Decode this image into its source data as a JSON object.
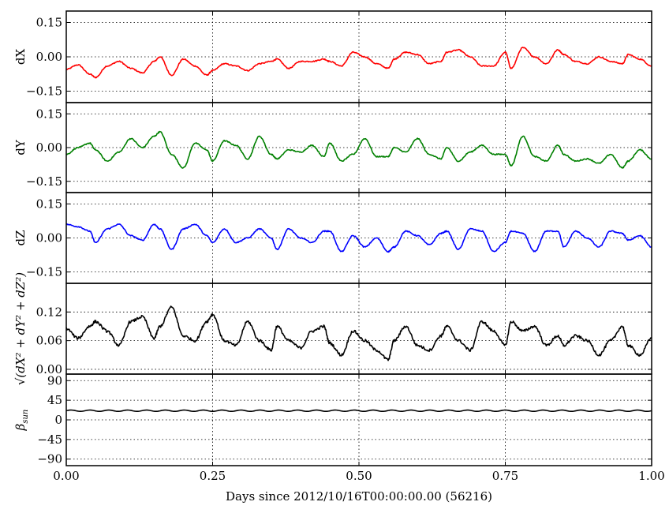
{
  "chart_data": {
    "type": "line",
    "layout": "stacked-subplots",
    "shared_x": {
      "label": "Days since 2012/10/16T00:00:00.00 (56216)",
      "range": [
        0,
        1
      ],
      "ticks": [
        0,
        0.25,
        0.5,
        0.75,
        1
      ],
      "tick_labels": [
        "0.00",
        "0.25",
        "0.50",
        "0.75",
        "1.00"
      ]
    },
    "grid": true,
    "panels": [
      {
        "ylabel": "dX",
        "ylim": [
          -0.2,
          0.2
        ],
        "yticks": [
          -0.15,
          0,
          0.15
        ],
        "ytick_labels": [
          "−0.15",
          "0.00",
          "0.15"
        ],
        "color": "#ff0000",
        "x": [
          0,
          0.02,
          0.04,
          0.05,
          0.07,
          0.09,
          0.11,
          0.13,
          0.15,
          0.16,
          0.18,
          0.2,
          0.22,
          0.24,
          0.25,
          0.27,
          0.29,
          0.31,
          0.33,
          0.35,
          0.36,
          0.38,
          0.4,
          0.42,
          0.44,
          0.45,
          0.47,
          0.49,
          0.51,
          0.53,
          0.55,
          0.56,
          0.58,
          0.6,
          0.62,
          0.64,
          0.65,
          0.67,
          0.69,
          0.71,
          0.73,
          0.75,
          0.76,
          0.78,
          0.8,
          0.82,
          0.84,
          0.85,
          0.87,
          0.89,
          0.91,
          0.93,
          0.95,
          0.96,
          0.98,
          1.0
        ],
        "values": [
          -0.055,
          -0.035,
          -0.075,
          -0.09,
          -0.04,
          -0.02,
          -0.05,
          -0.07,
          -0.02,
          0.0,
          -0.08,
          -0.01,
          -0.04,
          -0.08,
          -0.06,
          -0.03,
          -0.04,
          -0.06,
          -0.03,
          -0.02,
          -0.01,
          -0.05,
          -0.02,
          -0.02,
          -0.01,
          -0.02,
          -0.04,
          0.02,
          0.0,
          -0.03,
          -0.05,
          -0.01,
          0.02,
          0.01,
          -0.03,
          -0.02,
          0.02,
          0.03,
          0.0,
          -0.04,
          -0.04,
          0.02,
          -0.05,
          0.04,
          0.0,
          -0.03,
          0.03,
          0.01,
          -0.02,
          -0.03,
          0.0,
          -0.02,
          -0.03,
          0.01,
          -0.01,
          -0.04
        ]
      },
      {
        "ylabel": "dY",
        "ylim": [
          -0.2,
          0.2
        ],
        "yticks": [
          -0.15,
          0,
          0.15
        ],
        "ytick_labels": [
          "−0.15",
          "0.00",
          "0.15"
        ],
        "color": "#008000",
        "x": [
          0,
          0.02,
          0.04,
          0.05,
          0.07,
          0.09,
          0.11,
          0.13,
          0.15,
          0.16,
          0.18,
          0.2,
          0.22,
          0.24,
          0.25,
          0.27,
          0.29,
          0.31,
          0.33,
          0.35,
          0.36,
          0.38,
          0.4,
          0.42,
          0.44,
          0.45,
          0.47,
          0.49,
          0.51,
          0.53,
          0.55,
          0.56,
          0.58,
          0.6,
          0.62,
          0.64,
          0.65,
          0.67,
          0.69,
          0.71,
          0.73,
          0.75,
          0.76,
          0.78,
          0.8,
          0.82,
          0.84,
          0.85,
          0.87,
          0.89,
          0.91,
          0.93,
          0.95,
          0.96,
          0.98,
          1.0
        ],
        "values": [
          -0.03,
          0.0,
          0.02,
          -0.01,
          -0.06,
          -0.02,
          0.04,
          0.0,
          0.05,
          0.07,
          -0.03,
          -0.09,
          0.02,
          -0.01,
          -0.06,
          0.03,
          0.01,
          -0.05,
          0.05,
          -0.03,
          -0.05,
          -0.01,
          -0.02,
          0.01,
          -0.04,
          0.02,
          -0.06,
          -0.03,
          0.04,
          -0.04,
          -0.04,
          0.0,
          -0.02,
          0.04,
          -0.03,
          -0.05,
          0.0,
          -0.06,
          -0.02,
          0.01,
          -0.03,
          -0.03,
          -0.08,
          0.05,
          -0.04,
          -0.06,
          0.01,
          -0.03,
          -0.06,
          -0.05,
          -0.07,
          -0.03,
          -0.09,
          -0.06,
          -0.01,
          -0.05
        ]
      },
      {
        "ylabel": "dZ",
        "ylim": [
          -0.2,
          0.2
        ],
        "yticks": [
          -0.15,
          0,
          0.15
        ],
        "ytick_labels": [
          "−0.15",
          "0.00",
          "0.15"
        ],
        "color": "#0000ff",
        "x": [
          0,
          0.02,
          0.04,
          0.05,
          0.07,
          0.09,
          0.11,
          0.13,
          0.15,
          0.16,
          0.18,
          0.2,
          0.22,
          0.24,
          0.25,
          0.27,
          0.29,
          0.31,
          0.33,
          0.35,
          0.36,
          0.38,
          0.4,
          0.42,
          0.44,
          0.45,
          0.47,
          0.49,
          0.51,
          0.53,
          0.55,
          0.56,
          0.58,
          0.6,
          0.62,
          0.64,
          0.65,
          0.67,
          0.69,
          0.71,
          0.73,
          0.75,
          0.76,
          0.78,
          0.8,
          0.82,
          0.84,
          0.85,
          0.87,
          0.89,
          0.91,
          0.93,
          0.95,
          0.96,
          0.98,
          1.0
        ],
        "values": [
          0.06,
          0.05,
          0.03,
          -0.02,
          0.04,
          0.06,
          0.01,
          -0.01,
          0.06,
          0.04,
          -0.05,
          0.04,
          0.06,
          0.01,
          -0.02,
          0.04,
          -0.02,
          0.0,
          0.04,
          0.0,
          -0.05,
          0.04,
          0.0,
          -0.02,
          0.03,
          0.03,
          -0.06,
          0.01,
          -0.04,
          0.0,
          -0.06,
          -0.04,
          0.03,
          0.01,
          -0.03,
          0.02,
          0.03,
          -0.05,
          0.04,
          0.03,
          -0.06,
          -0.02,
          0.03,
          0.02,
          -0.06,
          0.03,
          0.03,
          -0.04,
          0.03,
          0.0,
          -0.04,
          0.03,
          0.02,
          -0.01,
          0.01,
          -0.04
        ]
      },
      {
        "ylabel": "√(dX² + dY² + dZ²)",
        "ylim": [
          -0.01,
          0.18
        ],
        "yticks": [
          0,
          0.06,
          0.12
        ],
        "ytick_labels": [
          "0.00",
          "0.06",
          "0.12"
        ],
        "color": "#000000",
        "x": [
          0,
          0.02,
          0.04,
          0.05,
          0.07,
          0.09,
          0.11,
          0.13,
          0.15,
          0.16,
          0.18,
          0.2,
          0.22,
          0.24,
          0.25,
          0.27,
          0.29,
          0.31,
          0.33,
          0.35,
          0.36,
          0.38,
          0.4,
          0.42,
          0.44,
          0.45,
          0.47,
          0.49,
          0.51,
          0.53,
          0.55,
          0.56,
          0.58,
          0.6,
          0.62,
          0.64,
          0.65,
          0.67,
          0.69,
          0.71,
          0.73,
          0.75,
          0.76,
          0.78,
          0.8,
          0.82,
          0.84,
          0.85,
          0.87,
          0.89,
          0.91,
          0.93,
          0.95,
          0.96,
          0.98,
          1.0
        ],
        "values": [
          0.085,
          0.065,
          0.09,
          0.1,
          0.08,
          0.05,
          0.1,
          0.11,
          0.065,
          0.09,
          0.13,
          0.07,
          0.06,
          0.1,
          0.115,
          0.06,
          0.05,
          0.1,
          0.06,
          0.04,
          0.09,
          0.06,
          0.045,
          0.08,
          0.09,
          0.055,
          0.03,
          0.08,
          0.06,
          0.04,
          0.02,
          0.06,
          0.09,
          0.05,
          0.04,
          0.07,
          0.09,
          0.06,
          0.04,
          0.1,
          0.08,
          0.05,
          0.1,
          0.08,
          0.09,
          0.05,
          0.07,
          0.05,
          0.07,
          0.06,
          0.03,
          0.06,
          0.09,
          0.05,
          0.03,
          0.065
        ]
      },
      {
        "ylabel": "β_sun",
        "ylim": [
          -105,
          105
        ],
        "yticks": [
          -90,
          -45,
          0,
          45,
          90
        ],
        "ytick_labels": [
          "−90",
          "−45",
          "0",
          "45",
          "90"
        ],
        "color": "#000000",
        "series_type": "sinusoid",
        "mean": 21,
        "amplitude": 1.5,
        "cycles": 31
      }
    ]
  }
}
